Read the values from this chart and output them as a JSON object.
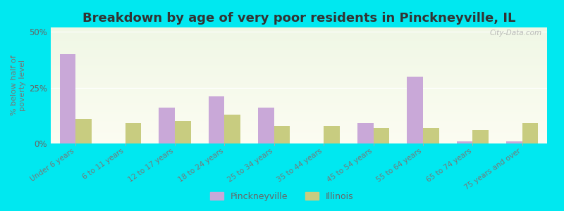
{
  "title": "Breakdown by age of very poor residents in Pinckneyville, IL",
  "categories": [
    "Under 6 years",
    "6 to 11 years",
    "12 to 17 years",
    "18 to 24 years",
    "25 to 34 years",
    "35 to 44 years",
    "45 to 54 years",
    "55 to 64 years",
    "65 to 74 years",
    "75 years and over"
  ],
  "pinckneyville": [
    40,
    0,
    16,
    21,
    16,
    0,
    9,
    30,
    1,
    1
  ],
  "illinois": [
    11,
    9,
    10,
    13,
    8,
    8,
    7,
    7,
    6,
    9
  ],
  "pinckneyville_color": "#c9a8d8",
  "illinois_color": "#c8cc80",
  "ylabel": "% below half of\npoverty level",
  "ylim": [
    0,
    52
  ],
  "yticks": [
    0,
    25,
    50
  ],
  "ytick_labels": [
    "0%",
    "25%",
    "50%"
  ],
  "background_outer": "#00e8f0",
  "title_fontsize": 13,
  "watermark": "City-Data.com",
  "bar_width": 0.32,
  "legend_labels": [
    "Pinckneyville",
    "Illinois"
  ]
}
